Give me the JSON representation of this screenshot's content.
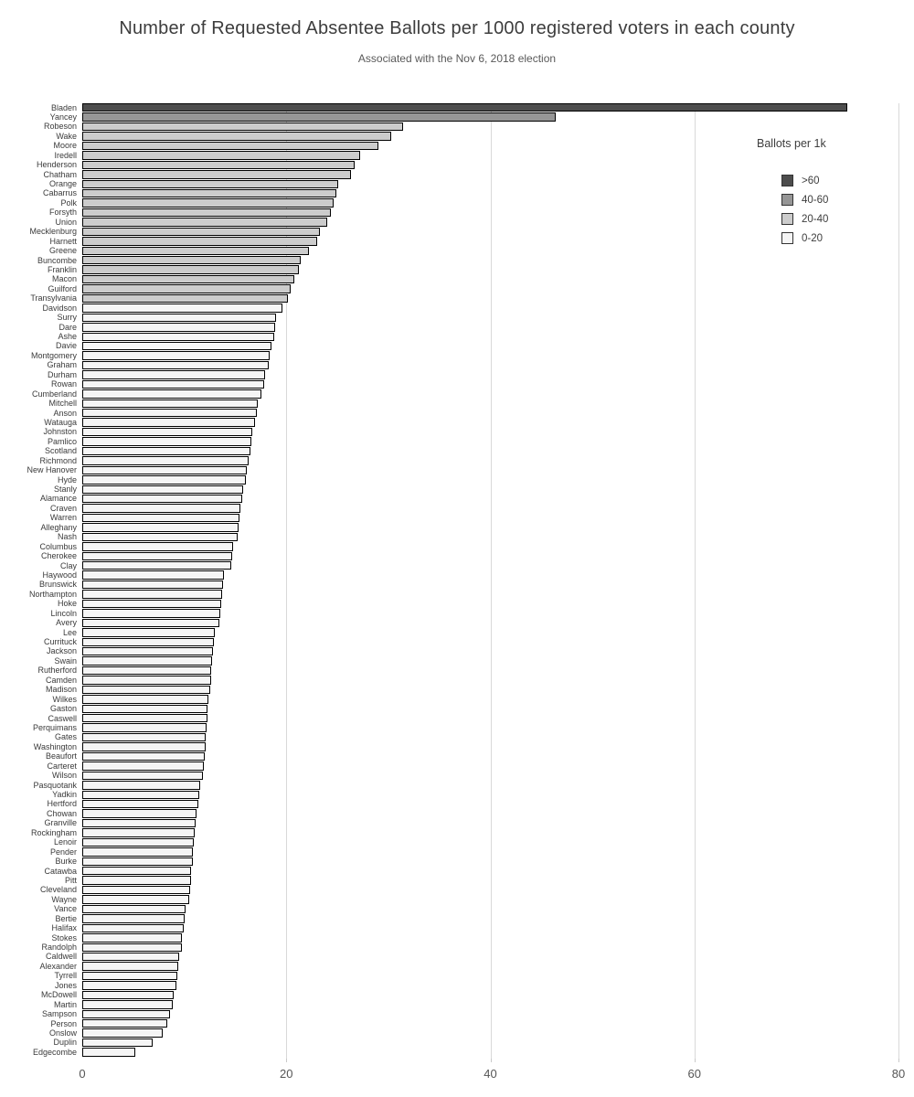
{
  "chart_data": {
    "type": "bar",
    "orientation": "horizontal",
    "title": "Number of Requested Absentee Ballots per 1000 registered voters in each county",
    "subtitle": "Associated with the Nov 6, 2018 election",
    "xlabel": "",
    "ylabel": "",
    "xlim": [
      0,
      80
    ],
    "x_ticks": [
      0,
      20,
      40,
      60,
      80
    ],
    "grid": "vertical-gridlines-at-x-ticks",
    "bar_border_color": "#000000",
    "gridline_color": "#d9d9d9",
    "legend": {
      "title": "Ballots per 1k",
      "position": "inside-top-right",
      "entries": [
        {
          "label": ">60",
          "color": "#4d4d4d",
          "min": 60
        },
        {
          "label": "40-60",
          "color": "#969696",
          "min": 40
        },
        {
          "label": "20-40",
          "color": "#cccccc",
          "min": 20
        },
        {
          "label": "0-20",
          "color": "#f5f5f5",
          "min": 0
        }
      ]
    },
    "categories": [
      "Bladen",
      "Yancey",
      "Robeson",
      "Wake",
      "Moore",
      "Iredell",
      "Henderson",
      "Chatham",
      "Orange",
      "Cabarrus",
      "Polk",
      "Forsyth",
      "Union",
      "Mecklenburg",
      "Harnett",
      "Greene",
      "Buncombe",
      "Franklin",
      "Macon",
      "Guilford",
      "Transylvania",
      "Davidson",
      "Surry",
      "Dare",
      "Ashe",
      "Davie",
      "Montgomery",
      "Graham",
      "Durham",
      "Rowan",
      "Cumberland",
      "Mitchell",
      "Anson",
      "Watauga",
      "Johnston",
      "Pamlico",
      "Scotland",
      "Richmond",
      "New Hanover",
      "Hyde",
      "Stanly",
      "Alamance",
      "Craven",
      "Warren",
      "Alleghany",
      "Nash",
      "Columbus",
      "Cherokee",
      "Clay",
      "Haywood",
      "Brunswick",
      "Northampton",
      "Hoke",
      "Lincoln",
      "Avery",
      "Lee",
      "Currituck",
      "Jackson",
      "Swain",
      "Rutherford",
      "Camden",
      "Madison",
      "Wilkes",
      "Gaston",
      "Caswell",
      "Perquimans",
      "Gates",
      "Washington",
      "Beaufort",
      "Carteret",
      "Wilson",
      "Pasquotank",
      "Yadkin",
      "Hertford",
      "Chowan",
      "Granville",
      "Rockingham",
      "Lenoir",
      "Pender",
      "Burke",
      "Catawba",
      "Pitt",
      "Cleveland",
      "Wayne",
      "Vance",
      "Bertie",
      "Halifax",
      "Stokes",
      "Randolph",
      "Caldwell",
      "Alexander",
      "Tyrrell",
      "Jones",
      "McDowell",
      "Martin",
      "Sampson",
      "Person",
      "Onslow",
      "Duplin",
      "Edgecombe"
    ],
    "values": [
      75.0,
      46.4,
      31.4,
      30.3,
      29.0,
      27.2,
      26.7,
      26.3,
      25.1,
      24.9,
      24.6,
      24.4,
      24.0,
      23.3,
      23.0,
      22.2,
      21.4,
      21.2,
      20.8,
      20.4,
      20.2,
      19.6,
      19.0,
      18.9,
      18.8,
      18.5,
      18.4,
      18.3,
      17.9,
      17.8,
      17.6,
      17.2,
      17.1,
      16.9,
      16.7,
      16.6,
      16.5,
      16.3,
      16.1,
      16.0,
      15.8,
      15.7,
      15.5,
      15.4,
      15.3,
      15.2,
      14.8,
      14.7,
      14.6,
      13.9,
      13.8,
      13.7,
      13.6,
      13.5,
      13.4,
      13.0,
      12.9,
      12.8,
      12.7,
      12.6,
      12.6,
      12.5,
      12.4,
      12.3,
      12.3,
      12.2,
      12.1,
      12.1,
      12.0,
      11.9,
      11.8,
      11.6,
      11.5,
      11.4,
      11.2,
      11.1,
      11.0,
      10.9,
      10.8,
      10.8,
      10.7,
      10.7,
      10.6,
      10.5,
      10.1,
      10.0,
      9.9,
      9.8,
      9.8,
      9.5,
      9.4,
      9.3,
      9.2,
      9.0,
      8.9,
      8.6,
      8.3,
      7.9,
      6.9,
      5.2
    ]
  }
}
